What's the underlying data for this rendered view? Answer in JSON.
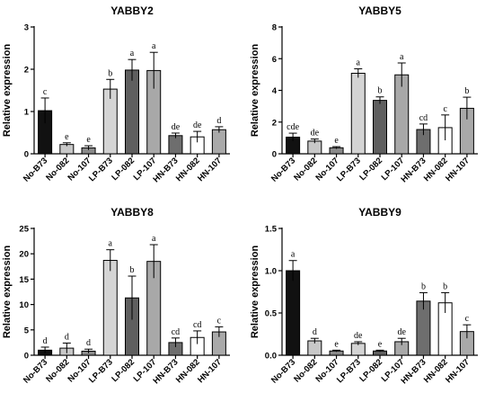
{
  "categories": [
    "No-B73",
    "No-082",
    "No-107",
    "LP-B73",
    "LP-082",
    "LP-107",
    "HN-B73",
    "HN-082",
    "HN-107"
  ],
  "bar_colors": [
    "#111111",
    "#c8c8c8",
    "#8a8a8a",
    "#d4d4d4",
    "#5f5f5f",
    "#a8a8a8",
    "#6e6e6e",
    "#ffffff",
    "#a9a9a9"
  ],
  "chart_data": [
    {
      "type": "bar",
      "title": "YABBY2",
      "ylabel": "Relative expression",
      "ylim": [
        0,
        3
      ],
      "yticks": [
        0,
        1,
        2,
        3
      ],
      "ytick_labels": [
        "0",
        "1",
        "2",
        "3"
      ],
      "values": [
        1.02,
        0.22,
        0.14,
        1.53,
        1.98,
        1.97,
        0.43,
        0.4,
        0.57
      ],
      "errors": [
        0.3,
        0.04,
        0.05,
        0.23,
        0.25,
        0.43,
        0.06,
        0.13,
        0.07
      ],
      "letters": [
        "c",
        "e",
        "e",
        "b",
        "a",
        "a",
        "de",
        "de",
        "d"
      ]
    },
    {
      "type": "bar",
      "title": "YABBY5",
      "ylabel": "Relative expression",
      "ylim": [
        0,
        8
      ],
      "yticks": [
        0,
        2,
        4,
        6,
        8
      ],
      "ytick_labels": [
        "0",
        "2",
        "4",
        "6",
        "8"
      ],
      "values": [
        1.05,
        0.8,
        0.38,
        5.08,
        3.37,
        4.98,
        1.53,
        1.65,
        2.87
      ],
      "errors": [
        0.25,
        0.13,
        0.07,
        0.28,
        0.22,
        0.75,
        0.35,
        0.8,
        0.7
      ],
      "letters": [
        "cde",
        "de",
        "e",
        "a",
        "b",
        "a",
        "cd",
        "c",
        "b"
      ]
    },
    {
      "type": "bar",
      "title": "YABBY8",
      "ylabel": "Relative expression",
      "ylim": [
        0,
        25
      ],
      "yticks": [
        0,
        5,
        10,
        15,
        20,
        25
      ],
      "ytick_labels": [
        "0",
        "5",
        "10",
        "15",
        "20",
        "25"
      ],
      "values": [
        1.0,
        1.4,
        0.8,
        18.7,
        11.3,
        18.5,
        2.5,
        3.5,
        4.6
      ],
      "errors": [
        0.6,
        1.0,
        0.4,
        2.1,
        4.3,
        3.3,
        0.9,
        1.3,
        1.0
      ],
      "letters": [
        "d",
        "d",
        "d",
        "a",
        "b",
        "a",
        "cd",
        "cd",
        "c"
      ]
    },
    {
      "type": "bar",
      "title": "YABBY9",
      "ylabel": "Relative expression",
      "ylim": [
        0,
        1.5
      ],
      "yticks": [
        0,
        0.5,
        1.0,
        1.5
      ],
      "ytick_labels": [
        "0.0",
        "0.5",
        "1.0",
        "1.5"
      ],
      "values": [
        1.0,
        0.17,
        0.05,
        0.14,
        0.05,
        0.16,
        0.64,
        0.62,
        0.28
      ],
      "errors": [
        0.12,
        0.03,
        0.01,
        0.02,
        0.01,
        0.04,
        0.1,
        0.12,
        0.08
      ],
      "letters": [
        "a",
        "d",
        "e",
        "de",
        "e",
        "de",
        "b",
        "b",
        "c"
      ]
    }
  ]
}
